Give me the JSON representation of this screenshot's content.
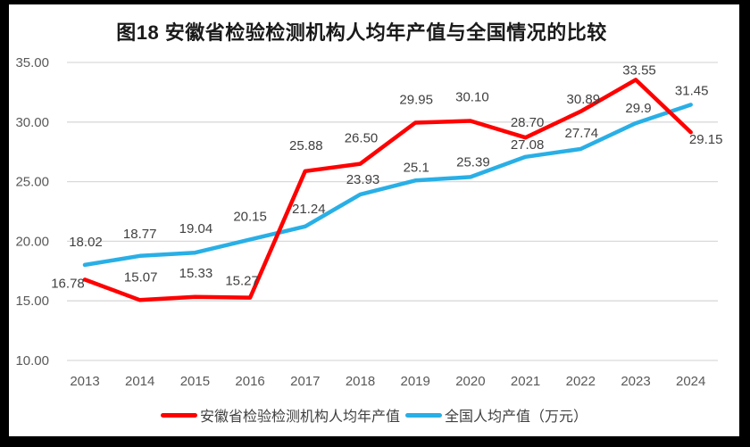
{
  "title": "图18 安徽省检验检测机构人均年产值与全国情况的比较",
  "chart_data": {
    "type": "line",
    "x": [
      "2013",
      "2014",
      "2015",
      "2016",
      "2017",
      "2018",
      "2019",
      "2020",
      "2021",
      "2022",
      "2023",
      "2024"
    ],
    "series": [
      {
        "name": "安徽省检验检测机构人均年产值",
        "color": "#FF0000",
        "values": [
          16.78,
          15.07,
          15.33,
          15.27,
          25.88,
          26.5,
          29.95,
          30.1,
          28.7,
          30.89,
          33.55,
          29.15
        ],
        "labels": [
          "16.78",
          "15.07",
          "15.33",
          "15.27",
          "25.88",
          "26.50",
          "29.95",
          "30.10",
          "28.70",
          "30.89",
          "33.55",
          "29.15"
        ],
        "label_offsets": [
          [
            -19,
            4
          ],
          [
            1,
            -26
          ],
          [
            1,
            -27
          ],
          [
            -9,
            -19
          ],
          [
            1,
            -29
          ],
          [
            1,
            -29
          ],
          [
            1,
            -26
          ],
          [
            2,
            -27
          ],
          [
            2,
            -17
          ],
          [
            3,
            -14
          ],
          [
            4,
            -11
          ],
          [
            17,
            8
          ]
        ]
      },
      {
        "name": "全国人均产值（万元）",
        "color": "#29AFE6",
        "values": [
          18.02,
          18.77,
          19.04,
          20.15,
          21.24,
          23.93,
          25.1,
          25.39,
          27.08,
          27.74,
          29.9,
          31.45
        ],
        "labels": [
          "18.02",
          "18.77",
          "19.04",
          "20.15",
          "21.24",
          "23.93",
          "25.1",
          "25.39",
          "27.08",
          "27.74",
          "29.9",
          "31.45"
        ],
        "label_offsets": [
          [
            1,
            -26
          ],
          [
            0,
            -25
          ],
          [
            1,
            -27
          ],
          [
            0,
            -26
          ],
          [
            4,
            -20
          ],
          [
            3,
            -17
          ],
          [
            1,
            -15
          ],
          [
            3,
            -17
          ],
          [
            2,
            -14
          ],
          [
            1,
            -18
          ],
          [
            3,
            -17
          ],
          [
            1,
            -16
          ]
        ]
      }
    ],
    "ylim": [
      10,
      35
    ],
    "yticks": [
      35,
      30,
      25,
      20,
      15,
      10
    ],
    "ytick_labels": [
      "35.00",
      "30.00",
      "25.00",
      "20.00",
      "15.00",
      "10.00"
    ],
    "grid": true,
    "legend_position": "bottom",
    "colors": {
      "gridline": "#D9D9D9",
      "tick_text": "#595959",
      "data_label_text": "#404040",
      "frame_border": "#000000",
      "background": "#FFFFFF"
    }
  }
}
